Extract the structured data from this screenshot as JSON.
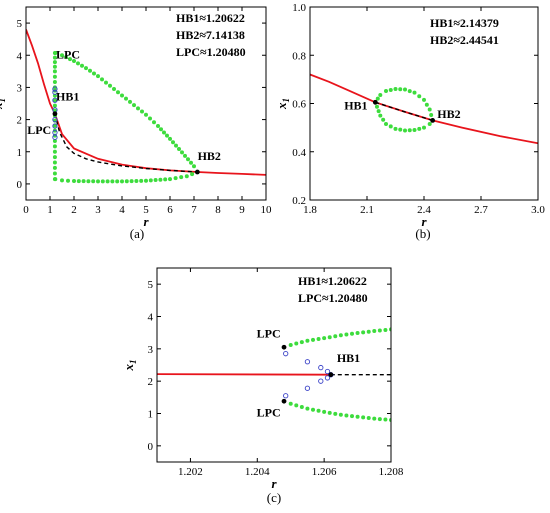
{
  "chart_data": [
    {
      "id": "a",
      "type": "line",
      "caption": "(a)",
      "xlabel": "r",
      "ylabel": "x",
      "ylabel_sub": "1",
      "xlim": [
        0,
        10
      ],
      "ylim": [
        -0.5,
        5.5
      ],
      "xticks": [
        0,
        1,
        2,
        3,
        4,
        5,
        6,
        7,
        8,
        9,
        10
      ],
      "yticks": [
        0,
        1,
        2,
        3,
        4,
        5
      ],
      "annotations": [
        "HB1≈1.20622",
        "HB2≈7.14138",
        "LPC≈1.20480"
      ],
      "point_labels": [
        {
          "text": "LPC",
          "x": 1.25,
          "y": 3.9
        },
        {
          "text": "HB1",
          "x": 1.25,
          "y": 2.6
        },
        {
          "text": "LPC",
          "x": 0.05,
          "y": 1.55
        },
        {
          "text": "HB2",
          "x": 7.15,
          "y": 0.75
        }
      ],
      "stable_eq": [
        [
          0,
          4.8
        ],
        [
          0.25,
          4.3
        ],
        [
          0.5,
          3.75
        ],
        [
          0.75,
          3.1
        ],
        [
          1.0,
          2.5
        ],
        [
          1.206,
          2.18
        ],
        [
          1.5,
          1.55
        ],
        [
          2,
          1.1
        ],
        [
          3,
          0.78
        ],
        [
          4,
          0.6
        ],
        [
          5,
          0.49
        ],
        [
          6,
          0.42
        ],
        [
          7.14,
          0.37
        ],
        [
          8,
          0.34
        ],
        [
          9,
          0.31
        ],
        [
          10,
          0.28
        ]
      ],
      "unstable_eq": [
        [
          1.206,
          2.18
        ],
        [
          1.4,
          1.6
        ],
        [
          1.7,
          1.15
        ],
        [
          2,
          0.95
        ],
        [
          2.5,
          0.78
        ],
        [
          3,
          0.68
        ],
        [
          4,
          0.56
        ],
        [
          5,
          0.48
        ],
        [
          6,
          0.42
        ],
        [
          7.14,
          0.37
        ]
      ],
      "stable_cycle_upper": [
        [
          1.22,
          4.07
        ],
        [
          1.5,
          4.0
        ],
        [
          2,
          3.82
        ],
        [
          2.5,
          3.6
        ],
        [
          3,
          3.35
        ],
        [
          3.5,
          3.05
        ],
        [
          4,
          2.75
        ],
        [
          4.5,
          2.45
        ],
        [
          5,
          2.15
        ],
        [
          5.5,
          1.8
        ],
        [
          6,
          1.4
        ],
        [
          6.5,
          0.98
        ],
        [
          7,
          0.55
        ],
        [
          7.14,
          0.37
        ]
      ],
      "stable_cycle_lower": [
        [
          1.22,
          0.15
        ],
        [
          1.5,
          0.11
        ],
        [
          2,
          0.09
        ],
        [
          3,
          0.08
        ],
        [
          4,
          0.08
        ],
        [
          5,
          0.1
        ],
        [
          6,
          0.15
        ],
        [
          6.7,
          0.24
        ],
        [
          7.14,
          0.37
        ]
      ],
      "stable_cycle_left": [
        [
          1.205,
          4.07
        ],
        [
          1.205,
          3.5
        ],
        [
          1.205,
          3.0
        ],
        [
          1.205,
          2.9
        ],
        [
          1.205,
          1.5
        ],
        [
          1.205,
          1.0
        ],
        [
          1.205,
          0.5
        ],
        [
          1.205,
          0.15
        ]
      ],
      "unstable_cycle": [
        [
          1.2055,
          2.95
        ],
        [
          1.206,
          2.85
        ],
        [
          1.2062,
          2.6
        ],
        [
          1.2062,
          2.3
        ],
        [
          1.2062,
          2.0
        ],
        [
          1.2062,
          1.8
        ],
        [
          1.206,
          1.6
        ],
        [
          1.2055,
          1.45
        ]
      ],
      "bif_points": [
        [
          1.206,
          2.18
        ],
        [
          7.14,
          0.37
        ]
      ]
    },
    {
      "id": "b",
      "type": "line",
      "caption": "(b)",
      "xlabel": "r",
      "ylabel": "x",
      "ylabel_sub": "1",
      "xlim": [
        1.8,
        3.0
      ],
      "ylim": [
        0.2,
        1.0
      ],
      "xticks": [
        1.8,
        2.1,
        2.4,
        2.7,
        3.0
      ],
      "xticklabels": [
        "1.8",
        "2.1",
        "2.4",
        "2.7",
        "3.0"
      ],
      "yticks": [
        0.2,
        0.4,
        0.6,
        0.8,
        1.0
      ],
      "yticklabels": [
        "0.2",
        "0.4",
        "0.6",
        "0.8",
        "1.0"
      ],
      "annotations": [
        "HB1≈2.14379",
        "HB2≈2.44541"
      ],
      "point_labels": [
        {
          "text": "HB1",
          "x": 1.98,
          "y": 0.575
        },
        {
          "text": "HB2",
          "x": 2.47,
          "y": 0.54
        }
      ],
      "stable_eq": [
        [
          1.8,
          0.72
        ],
        [
          1.9,
          0.69
        ],
        [
          2.0,
          0.655
        ],
        [
          2.14379,
          0.605
        ],
        [
          2.3,
          0.565
        ],
        [
          2.44541,
          0.53
        ],
        [
          2.6,
          0.5
        ],
        [
          2.8,
          0.465
        ],
        [
          3.0,
          0.435
        ]
      ],
      "unstable_eq": [
        [
          2.14379,
          0.605
        ],
        [
          2.3,
          0.565
        ],
        [
          2.44541,
          0.53
        ]
      ],
      "stable_cycle_upper": [
        [
          2.14379,
          0.605
        ],
        [
          2.17,
          0.635
        ],
        [
          2.2,
          0.652
        ],
        [
          2.25,
          0.66
        ],
        [
          2.3,
          0.658
        ],
        [
          2.35,
          0.645
        ],
        [
          2.4,
          0.615
        ],
        [
          2.43,
          0.575
        ],
        [
          2.44541,
          0.53
        ]
      ],
      "stable_cycle_lower": [
        [
          2.14379,
          0.605
        ],
        [
          2.17,
          0.55
        ],
        [
          2.2,
          0.515
        ],
        [
          2.25,
          0.495
        ],
        [
          2.3,
          0.488
        ],
        [
          2.35,
          0.49
        ],
        [
          2.4,
          0.5
        ],
        [
          2.43,
          0.515
        ],
        [
          2.44541,
          0.53
        ]
      ],
      "bif_points": [
        [
          2.14379,
          0.605
        ],
        [
          2.44541,
          0.53
        ]
      ]
    },
    {
      "id": "c",
      "type": "line",
      "caption": "(c)",
      "xlabel": "r",
      "ylabel": "x",
      "ylabel_sub": "1",
      "xlim": [
        1.201,
        1.208
      ],
      "ylim": [
        -0.5,
        5.5
      ],
      "xticks": [
        1.202,
        1.204,
        1.206,
        1.208
      ],
      "xticklabels": [
        "1.202",
        "1.204",
        "1.206",
        "1.208"
      ],
      "yticks": [
        0,
        1,
        2,
        3,
        4,
        5
      ],
      "annotations": [
        "HB1≈1.20622",
        "LPC≈1.20480"
      ],
      "point_labels": [
        {
          "text": "LPC",
          "x": 1.20398,
          "y": 3.35
        },
        {
          "text": "HB1",
          "x": 1.20638,
          "y": 2.6
        },
        {
          "text": "LPC",
          "x": 1.20398,
          "y": 0.9
        }
      ],
      "stable_eq": [
        [
          1.201,
          2.22
        ],
        [
          1.2062,
          2.2
        ]
      ],
      "unstable_eq": [
        [
          1.2062,
          2.2
        ],
        [
          1.208,
          2.2
        ]
      ],
      "stable_cycle_upper": [
        [
          1.2048,
          3.05
        ],
        [
          1.205,
          3.12
        ],
        [
          1.2055,
          3.25
        ],
        [
          1.206,
          3.33
        ],
        [
          1.2065,
          3.42
        ],
        [
          1.207,
          3.49
        ],
        [
          1.2075,
          3.55
        ],
        [
          1.208,
          3.6
        ]
      ],
      "stable_cycle_lower": [
        [
          1.2048,
          1.38
        ],
        [
          1.205,
          1.3
        ],
        [
          1.2055,
          1.15
        ],
        [
          1.206,
          1.05
        ],
        [
          1.2065,
          0.96
        ],
        [
          1.207,
          0.9
        ],
        [
          1.2075,
          0.84
        ],
        [
          1.208,
          0.8
        ]
      ],
      "unstable_cycle": [
        [
          1.20485,
          2.85
        ],
        [
          1.2055,
          2.6
        ],
        [
          1.2059,
          2.42
        ],
        [
          1.2061,
          2.3
        ],
        [
          1.2062,
          2.2
        ],
        [
          1.2061,
          2.1
        ],
        [
          1.2059,
          2.0
        ],
        [
          1.2055,
          1.78
        ],
        [
          1.20485,
          1.55
        ]
      ],
      "bif_points": [
        [
          1.2048,
          3.05
        ],
        [
          1.2048,
          1.38
        ],
        [
          1.2062,
          2.2
        ]
      ]
    }
  ],
  "colors": {
    "stable_eq": "#e8141c",
    "unstable_eq": "#000000",
    "stable_cycle": "#3ddc3d",
    "unstable_cycle": "#3c44c8",
    "bif_point": "#000000"
  }
}
